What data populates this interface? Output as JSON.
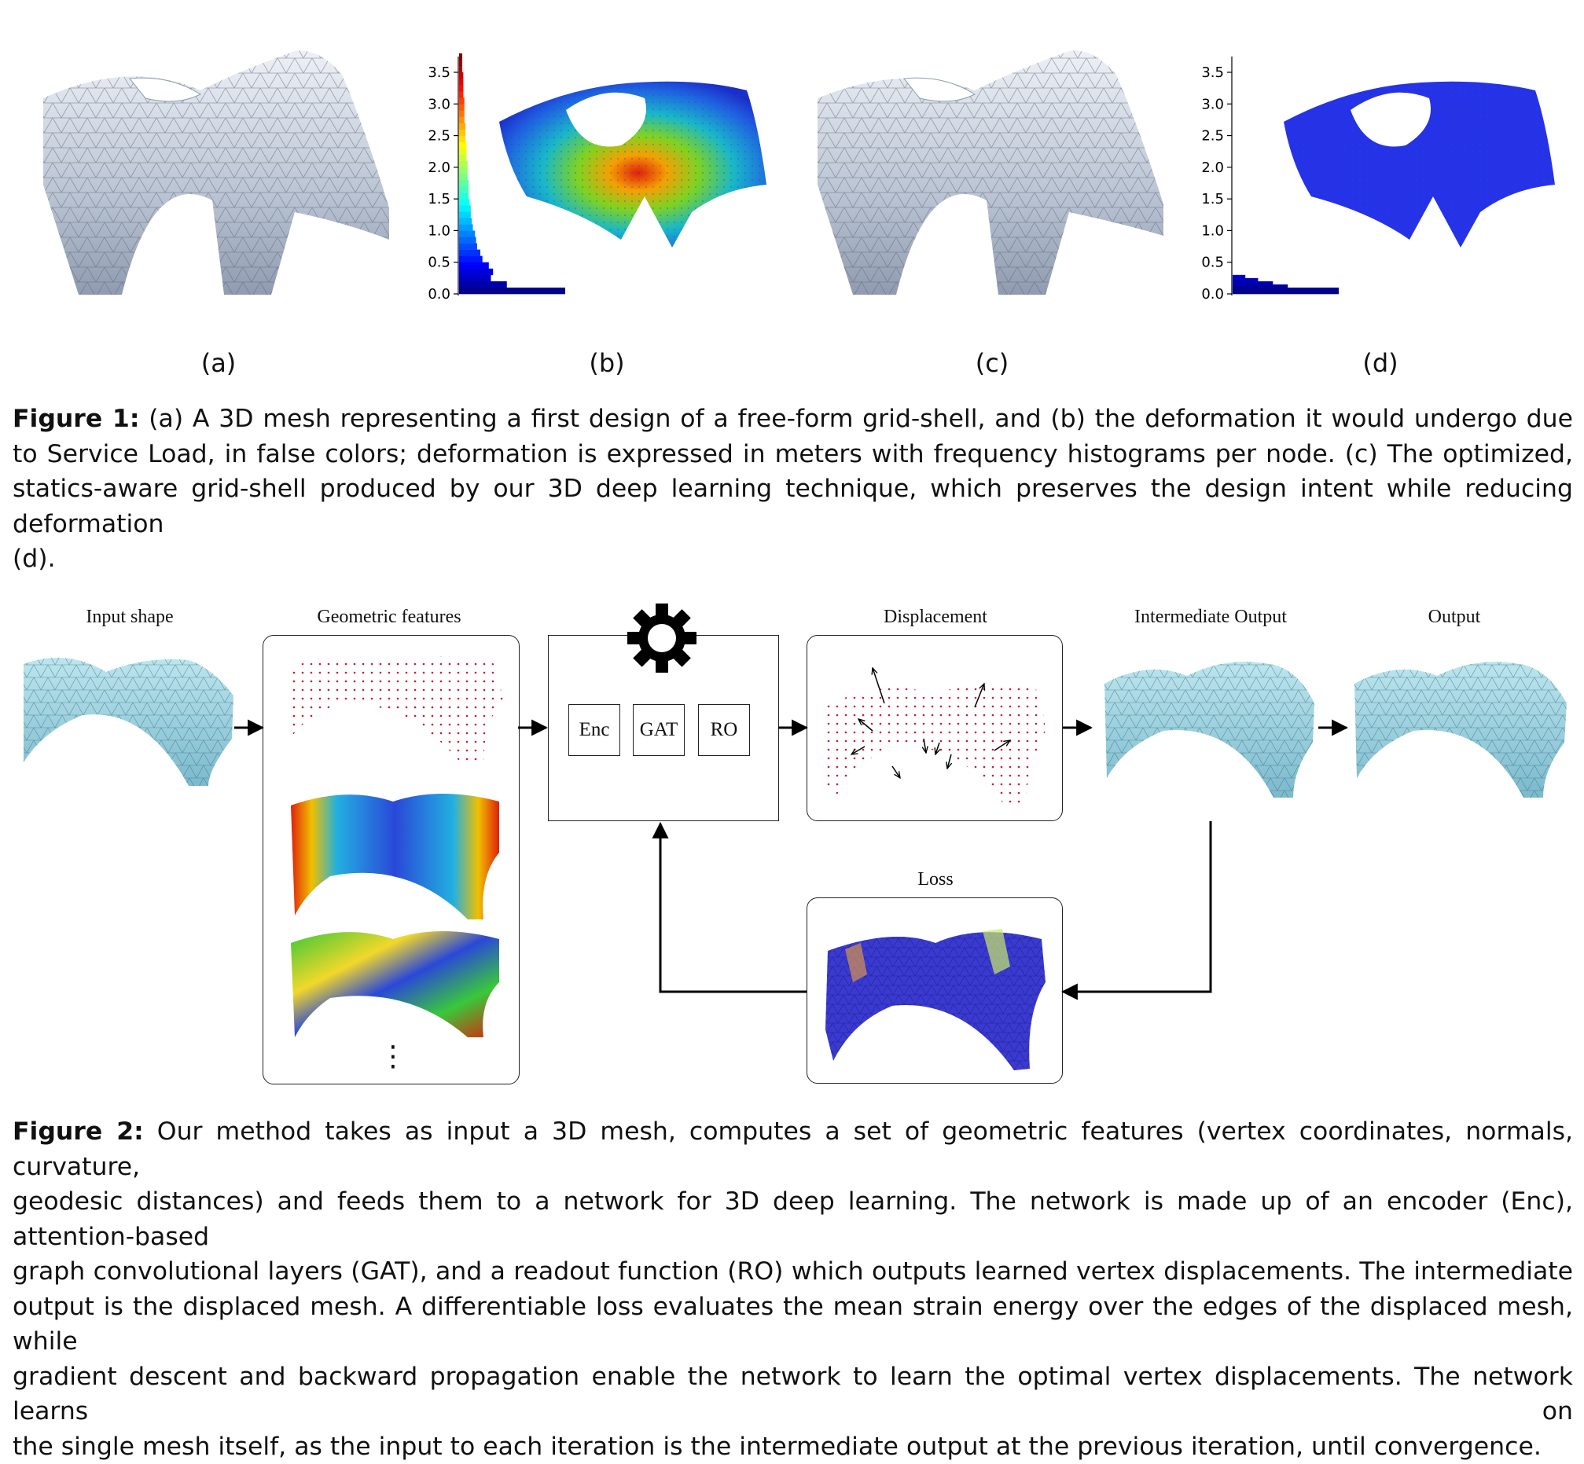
{
  "figure1": {
    "subpanel_labels": [
      "(a)",
      "(b)",
      "(c)",
      "(d)"
    ],
    "caption_bold": "Figure 1:",
    "caption_lines": [
      "(a) A 3D mesh representing a first design of a free-form grid-shell, and (b) the deformation it would undergo due",
      "to Service Load, in false colors; deformation is expressed in meters with frequency histograms per node. (c) The optimized,",
      "statics-aware grid-shell produced by our 3D deep learning technique, which preserves the design intent while reducing deformation",
      "(d)."
    ]
  },
  "chart_data": [
    {
      "type": "bar",
      "orientation": "horizontal",
      "panel": "(b)",
      "ytick_labels": [
        "0.0",
        "0.5",
        "1.0",
        "1.5",
        "2.0",
        "2.5",
        "3.0",
        "3.5"
      ],
      "ylim": [
        0,
        3.75
      ],
      "bins": [
        0.0,
        0.1,
        0.2,
        0.3,
        0.4,
        0.5,
        0.6,
        0.7,
        0.8,
        0.9,
        1.0,
        1.1,
        1.2,
        1.3,
        1.4,
        1.5,
        1.6,
        1.7,
        1.8,
        1.9,
        2.0,
        2.1,
        2.2,
        2.3,
        2.4,
        2.5,
        2.6,
        2.7,
        2.8,
        2.9,
        3.0,
        3.1,
        3.2,
        3.3,
        3.4,
        3.5,
        3.6,
        3.7
      ],
      "values": [
        100,
        45,
        30,
        32,
        28,
        22,
        20,
        17,
        16,
        15,
        13,
        12,
        11,
        11,
        10,
        9,
        9,
        9,
        8,
        8,
        8,
        7,
        7,
        7,
        6,
        6,
        6,
        5,
        5,
        5,
        5,
        4,
        4,
        4,
        4,
        3,
        3,
        3
      ],
      "colormap": "jet"
    },
    {
      "type": "bar",
      "orientation": "horizontal",
      "panel": "(d)",
      "ytick_labels": [
        "0.0",
        "0.5",
        "1.0",
        "1.5",
        "2.0",
        "2.5",
        "3.0",
        "3.5"
      ],
      "ylim": [
        0,
        3.75
      ],
      "bins": [
        0.0,
        0.05,
        0.1,
        0.15,
        0.2,
        0.25
      ],
      "values": [
        100,
        100,
        52,
        38,
        24,
        12
      ],
      "colormap": "jet"
    }
  ],
  "figure2": {
    "labels": {
      "input_shape": "Input shape",
      "geometric_features": "Geometric features",
      "displacement": "Displacement",
      "intermediate_output": "Intermediate Output",
      "output": "Output",
      "loss": "Loss"
    },
    "network_blocks": [
      "Enc",
      "GAT",
      "RO"
    ],
    "vdots": "⋮",
    "caption_bold": "Figure 2:",
    "caption_lines": [
      "Our method takes as input a 3D mesh, computes a set of geometric features (vertex coordinates, normals, curvature,",
      "geodesic distances) and feeds them to a network for 3D deep learning. The network is made up of an encoder (Enc), attention-based",
      "graph convolutional layers (GAT), and a readout function (RO) which outputs learned vertex displacements. The intermediate",
      "output is the displaced mesh. A differentiable loss evaluates the mean strain energy over the edges of the displaced mesh, while",
      "gradient descent and backward propagation enable the network to learn the optimal vertex displacements. The network learns on",
      "the single mesh itself, as the input to each iteration is the intermediate output at the previous iteration, until convergence."
    ]
  }
}
